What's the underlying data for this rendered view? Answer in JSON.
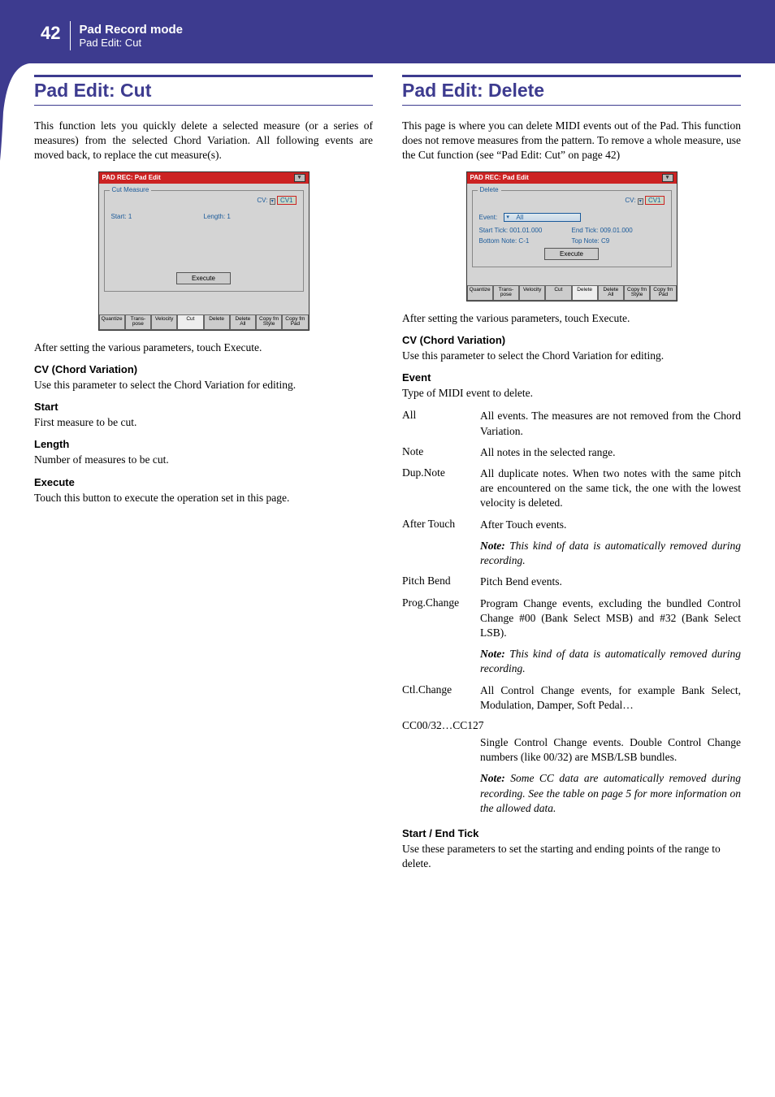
{
  "page": {
    "number": "42",
    "header_title": "Pad Record mode",
    "header_subtitle": "Pad Edit: Cut"
  },
  "colors": {
    "brand": "#3d3b8f",
    "titlebar": "#cc2222"
  },
  "left": {
    "title": "Pad Edit: Cut",
    "intro": "This function lets you quickly delete a selected measure (or a series of measures) from the selected Chord Variation. All following events are moved back, to replace the cut measure(s).",
    "screenshot": {
      "titlebar": "PAD REC: Pad Edit",
      "group": "Cut Measure",
      "cv_label": "CV:",
      "cv_value": "CV1",
      "start": "Start:  1",
      "length": "Length:  1",
      "execute": "Execute",
      "tabs": [
        "Quantize",
        "Trans-\npose",
        "Velocity",
        "Cut",
        "Delete",
        "Delete\nAll",
        "Copy fm\nStyle",
        "Copy fm\nPad"
      ],
      "active_tab": 3
    },
    "after": "After setting the various parameters, touch Execute.",
    "params": [
      {
        "h": "CV (Chord Variation)",
        "t": "Use this parameter to select the Chord Variation for editing."
      },
      {
        "h": "Start",
        "t": "First measure to be cut."
      },
      {
        "h": "Length",
        "t": "Number of measures to be cut."
      },
      {
        "h": "Execute",
        "t": "Touch this button to execute the operation set in this page."
      }
    ]
  },
  "right": {
    "title": "Pad Edit: Delete",
    "intro": "This page is where you can delete MIDI events out of the Pad. This function does not remove measures from the pattern. To remove a whole measure, use the Cut function (see “Pad Edit: Cut” on page 42)",
    "screenshot": {
      "titlebar": "PAD REC: Pad Edit",
      "group": "Delete",
      "cv_label": "CV:",
      "cv_value": "CV1",
      "event_label": "Event:",
      "event_value": "All",
      "start_tick": "Start Tick:   001.01.000",
      "end_tick": "End Tick:   009.01.000",
      "bottom_note": "Bottom Note:  C-1",
      "top_note": "Top Note:   C9",
      "execute": "Execute",
      "tabs": [
        "Quantize",
        "Trans-\npose",
        "Velocity",
        "Cut",
        "Delete",
        "Delete\nAll",
        "Copy fm\nStyle",
        "Copy fm\nPad"
      ],
      "active_tab": 4
    },
    "after": "After setting the various parameters, touch Execute.",
    "cv_h": "CV (Chord Variation)",
    "cv_t": "Use this parameter to select the Chord Variation for editing.",
    "event_h": "Event",
    "event_t": "Type of MIDI event to delete.",
    "events": [
      {
        "l": "All",
        "d": "All events. The measures are not removed from the Chord Variation."
      },
      {
        "l": "Note",
        "d": "All notes in the selected range."
      },
      {
        "l": "Dup.Note",
        "d": "All duplicate notes. When two notes with the same pitch are encountered on the same tick, the one with the lowest velocity is deleted."
      },
      {
        "l": "After Touch",
        "d": "After Touch events.",
        "note": "This kind of data is automatically removed during recording."
      },
      {
        "l": "Pitch Bend",
        "d": "Pitch Bend events."
      },
      {
        "l": "Prog.Change",
        "d": "Program Change events, excluding the bundled Control Change #00 (Bank Select MSB) and #32 (Bank Select LSB).",
        "note": "This kind of data is automatically removed during recording."
      },
      {
        "l": "Ctl.Change",
        "d": "All Control Change events, for example Bank Select, Modulation, Damper, Soft Pedal…"
      }
    ],
    "cc_label": "CC00/32…CC127",
    "cc_desc": "Single Control Change events. Double Control Change numbers (like 00/32) are MSB/LSB bundles.",
    "cc_note": "Some CC data are automatically removed during recording. See the table on page 5 for more information on the allowed data.",
    "note_label": "Note:",
    "set_h": "Start / End Tick",
    "set_t": "Use these parameters to set the starting and ending points of the range to delete."
  }
}
